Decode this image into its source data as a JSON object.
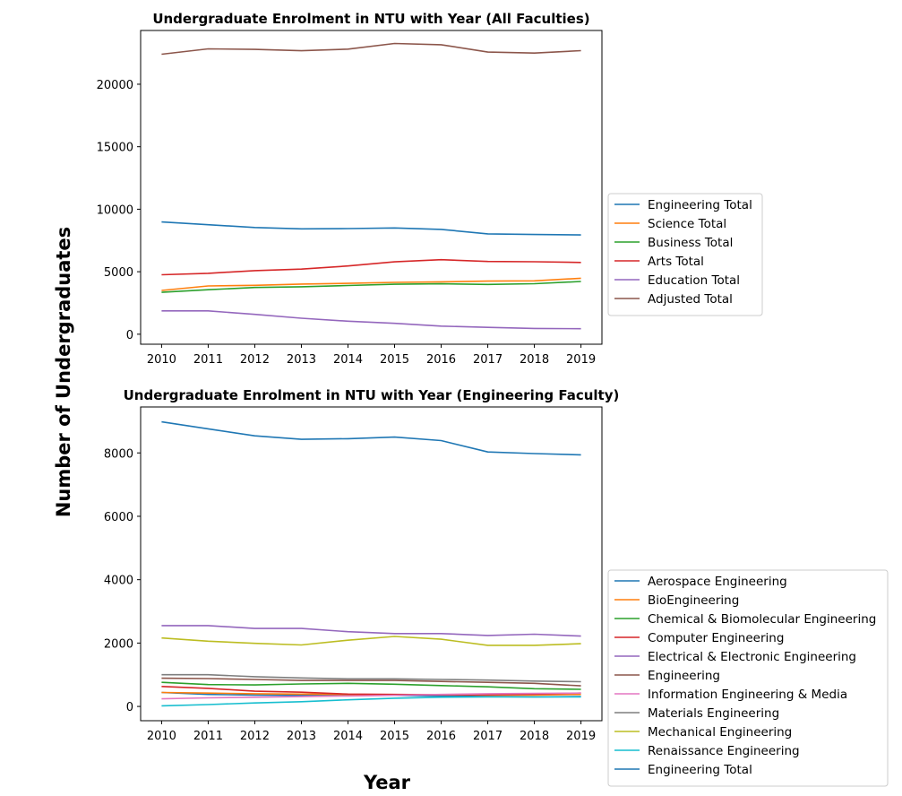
{
  "figure": {
    "supylabel": "Number of Undergraduates",
    "supxlabel": "Year"
  },
  "chart_data": [
    {
      "type": "line",
      "title": "Undergraduate Enrolment in NTU with Year (All Faculties)",
      "xlabel": "",
      "ylabel": "",
      "x": [
        2010,
        2011,
        2012,
        2013,
        2014,
        2015,
        2016,
        2017,
        2018,
        2019
      ],
      "xlim": [
        2009.55,
        2019.45
      ],
      "ylim": [
        -800,
        24300
      ],
      "yticks": [
        0,
        5000,
        10000,
        15000,
        20000
      ],
      "legend_position": "right",
      "series": [
        {
          "name": "Engineering Total",
          "color": "#1f77b4",
          "values": [
            8980,
            8760,
            8540,
            8430,
            8450,
            8500,
            8390,
            8030,
            7980,
            7940
          ]
        },
        {
          "name": "Science Total",
          "color": "#ff7f0e",
          "values": [
            3500,
            3860,
            3910,
            4010,
            4070,
            4150,
            4190,
            4250,
            4270,
            4480
          ]
        },
        {
          "name": "Business Total",
          "color": "#2ca02c",
          "values": [
            3350,
            3560,
            3740,
            3800,
            3900,
            4000,
            4030,
            3980,
            4040,
            4220
          ]
        },
        {
          "name": "Arts Total",
          "color": "#d62728",
          "values": [
            4760,
            4870,
            5090,
            5210,
            5460,
            5790,
            5960,
            5820,
            5800,
            5740
          ]
        },
        {
          "name": "Education Total",
          "color": "#9467bd",
          "values": [
            1870,
            1870,
            1590,
            1280,
            1040,
            870,
            650,
            550,
            460,
            440
          ]
        },
        {
          "name": "Adjusted Total",
          "color": "#8c564b",
          "values": [
            22400,
            22830,
            22790,
            22680,
            22810,
            23260,
            23160,
            22570,
            22490,
            22690
          ]
        }
      ]
    },
    {
      "type": "line",
      "title": "Undergraduate Enrolment in NTU with Year (Engineering Faculty)",
      "xlabel": "",
      "ylabel": "",
      "x": [
        2010,
        2011,
        2012,
        2013,
        2014,
        2015,
        2016,
        2017,
        2018,
        2019
      ],
      "xlim": [
        2009.55,
        2019.45
      ],
      "ylim": [
        -450,
        9450
      ],
      "yticks": [
        0,
        2000,
        4000,
        6000,
        8000
      ],
      "legend_position": "right",
      "series": [
        {
          "name": "Aerospace Engineering",
          "color": "#1f77b4",
          "values": [
            440,
            380,
            360,
            350,
            360,
            350,
            330,
            310,
            300,
            310
          ]
        },
        {
          "name": "BioEngineering",
          "color": "#ff7f0e",
          "values": [
            440,
            420,
            400,
            390,
            380,
            370,
            370,
            360,
            360,
            380
          ]
        },
        {
          "name": "Chemical & Biomolecular Engineering",
          "color": "#2ca02c",
          "values": [
            760,
            690,
            680,
            710,
            730,
            700,
            660,
            620,
            560,
            540
          ]
        },
        {
          "name": "Computer Engineering",
          "color": "#d62728",
          "values": [
            630,
            570,
            480,
            450,
            390,
            380,
            370,
            370,
            390,
            420
          ]
        },
        {
          "name": "Electrical & Electronic Engineering",
          "color": "#9467bd",
          "values": [
            2550,
            2550,
            2460,
            2460,
            2360,
            2300,
            2300,
            2240,
            2280,
            2220
          ]
        },
        {
          "name": "Engineering",
          "color": "#8c564b",
          "values": [
            890,
            880,
            850,
            820,
            820,
            820,
            790,
            760,
            730,
            650
          ]
        },
        {
          "name": "Information Engineering & Media",
          "color": "#e377c2",
          "values": [
            240,
            270,
            290,
            310,
            330,
            350,
            380,
            400,
            410,
            420
          ]
        },
        {
          "name": "Materials Engineering",
          "color": "#7f7f7f",
          "values": [
            1000,
            1000,
            940,
            900,
            870,
            870,
            850,
            830,
            800,
            780
          ]
        },
        {
          "name": "Mechanical Engineering",
          "color": "#bcbd22",
          "values": [
            2160,
            2060,
            1990,
            1940,
            2090,
            2210,
            2120,
            1930,
            1930,
            1980
          ]
        },
        {
          "name": "Renaissance Engineering",
          "color": "#17becf",
          "values": [
            20,
            60,
            110,
            150,
            210,
            260,
            290,
            300,
            300,
            300
          ]
        },
        {
          "name": "Engineering Total",
          "color": "#1f77b4",
          "values": [
            8980,
            8760,
            8540,
            8430,
            8450,
            8500,
            8390,
            8030,
            7980,
            7940
          ]
        }
      ]
    }
  ]
}
